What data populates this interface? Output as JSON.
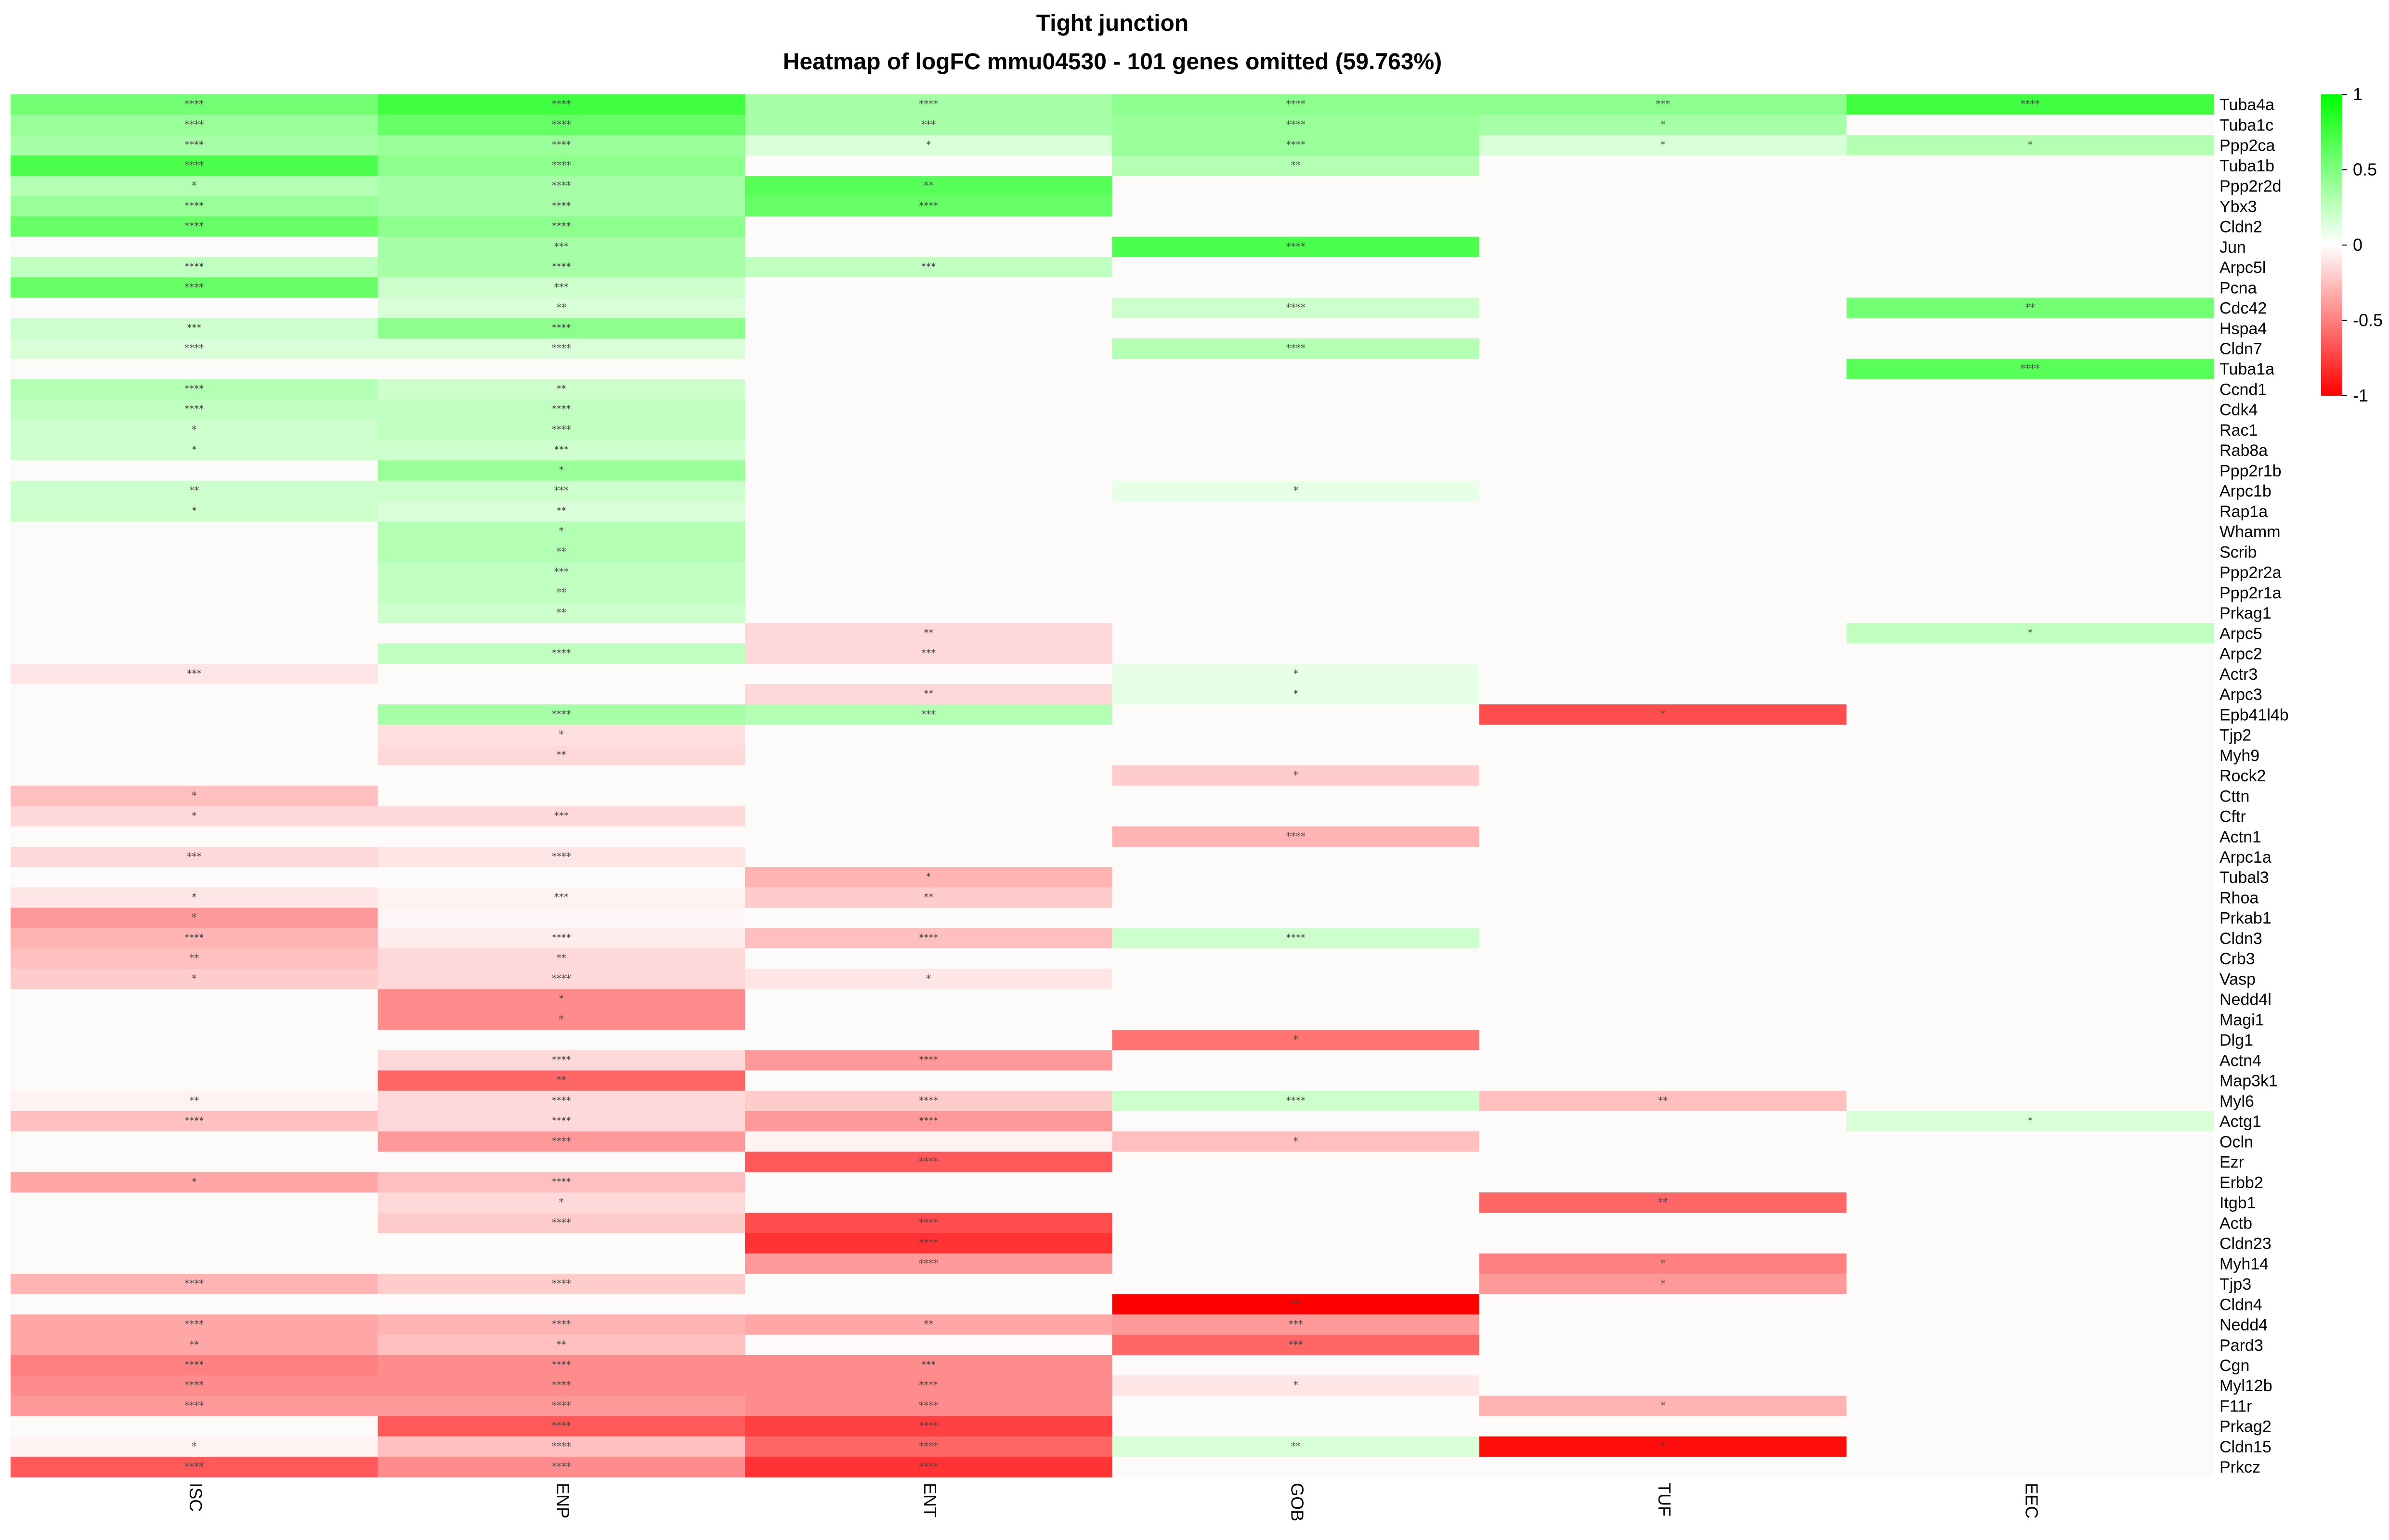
{
  "chart_data": {
    "type": "heatmap",
    "title": "Tight junction",
    "subtitle": "Heatmap of logFC mmu04530 - 101 genes omitted (59.763%)",
    "columns": [
      "ISC",
      "ENP",
      "ENT",
      "GOB",
      "TUF",
      "EEC"
    ],
    "rows": [
      "Tuba4a",
      "Tuba1c",
      "Ppp2ca",
      "Tuba1b",
      "Ppp2r2d",
      "Ybx3",
      "Cldn2",
      "Jun",
      "Arpc5l",
      "Pcna",
      "Cdc42",
      "Hspa4",
      "Cldn7",
      "Tuba1a",
      "Ccnd1",
      "Cdk4",
      "Rac1",
      "Rab8a",
      "Ppp2r1b",
      "Arpc1b",
      "Rap1a",
      "Whamm",
      "Scrib",
      "Ppp2r2a",
      "Ppp2r1a",
      "Prkag1",
      "Arpc5",
      "Arpc2",
      "Actr3",
      "Arpc3",
      "Epb41l4b",
      "Tjp2",
      "Myh9",
      "Rock2",
      "Cttn",
      "Cftr",
      "Actn1",
      "Arpc1a",
      "Tubal3",
      "Rhoa",
      "Prkab1",
      "Cldn3",
      "Crb3",
      "Vasp",
      "Nedd4l",
      "Magi1",
      "Dlg1",
      "Actn4",
      "Map3k1",
      "Myl6",
      "Actg1",
      "Ocln",
      "Ezr",
      "Erbb2",
      "Itgb1",
      "Actb",
      "Cldn23",
      "Myh14",
      "Tjp3",
      "Cldn4",
      "Nedd4",
      "Pard3",
      "Cgn",
      "Myl12b",
      "F11r",
      "Prkag2",
      "Cldn15",
      "Prkcz"
    ],
    "values": [
      [
        0.55,
        0.75,
        0.35,
        0.45,
        0.45,
        0.75
      ],
      [
        0.4,
        0.6,
        0.35,
        0.4,
        0.35,
        0
      ],
      [
        0.35,
        0.4,
        0.15,
        0.4,
        0.15,
        0.3
      ],
      [
        0.7,
        0.45,
        0,
        0.3,
        0,
        0
      ],
      [
        0.3,
        0.35,
        0.65,
        0,
        0,
        0
      ],
      [
        0.4,
        0.35,
        0.6,
        0,
        0,
        0
      ],
      [
        0.6,
        0.45,
        0,
        0,
        0,
        0
      ],
      [
        0,
        0.35,
        0,
        0.7,
        0,
        0
      ],
      [
        0.25,
        0.35,
        0.25,
        0,
        0,
        0
      ],
      [
        0.6,
        0.2,
        0,
        0,
        0,
        0
      ],
      [
        0,
        0.15,
        0,
        0.2,
        0,
        0.55
      ],
      [
        0.2,
        0.45,
        0,
        0,
        0,
        0
      ],
      [
        0.15,
        0.15,
        0,
        0.3,
        0,
        0
      ],
      [
        0,
        0,
        0,
        0,
        0,
        0.65
      ],
      [
        0.3,
        0.2,
        0,
        0,
        0,
        0
      ],
      [
        0.25,
        0.25,
        0,
        0,
        0,
        0
      ],
      [
        0.2,
        0.25,
        0,
        0,
        0,
        0
      ],
      [
        0.2,
        0.2,
        0,
        0,
        0,
        0
      ],
      [
        0,
        0.4,
        0,
        0,
        0,
        0
      ],
      [
        0.2,
        0.2,
        0,
        0.1,
        0,
        0
      ],
      [
        0.2,
        0.15,
        0,
        0,
        0,
        0
      ],
      [
        0,
        0.3,
        0,
        0,
        0,
        0
      ],
      [
        0,
        0.3,
        0,
        0,
        0,
        0
      ],
      [
        0,
        0.25,
        0,
        0,
        0,
        0
      ],
      [
        0,
        0.25,
        0,
        0,
        0,
        0
      ],
      [
        0,
        0.2,
        0,
        0,
        0,
        0
      ],
      [
        0,
        0,
        -0.15,
        0,
        0,
        0.25
      ],
      [
        0,
        0.25,
        -0.15,
        0,
        0,
        0
      ],
      [
        -0.1,
        0,
        0,
        0.1,
        0,
        0
      ],
      [
        0,
        0,
        -0.15,
        0.1,
        0,
        0
      ],
      [
        0,
        0.35,
        0.3,
        0,
        -0.7,
        0
      ],
      [
        0,
        -0.12,
        0,
        0,
        0,
        0
      ],
      [
        0,
        -0.15,
        0,
        0,
        0,
        0
      ],
      [
        0,
        0,
        0,
        -0.2,
        0,
        0
      ],
      [
        -0.25,
        0,
        0,
        0,
        0,
        0
      ],
      [
        -0.15,
        -0.15,
        0,
        0,
        0,
        0
      ],
      [
        0,
        0,
        0,
        -0.3,
        0,
        0
      ],
      [
        -0.15,
        -0.1,
        0,
        0,
        0,
        0
      ],
      [
        0,
        0,
        -0.3,
        0,
        0,
        0
      ],
      [
        -0.1,
        -0.05,
        -0.2,
        0,
        0,
        0
      ],
      [
        -0.4,
        -0.03,
        0,
        0,
        0,
        0
      ],
      [
        -0.3,
        -0.07,
        -0.25,
        0.2,
        0,
        0
      ],
      [
        -0.25,
        -0.15,
        0,
        0,
        0,
        0
      ],
      [
        -0.2,
        -0.15,
        -0.1,
        0,
        0,
        0
      ],
      [
        0,
        -0.45,
        0,
        0,
        0,
        0
      ],
      [
        0,
        -0.45,
        0,
        0,
        0,
        0
      ],
      [
        0,
        0,
        0,
        -0.55,
        0,
        0
      ],
      [
        0,
        -0.15,
        -0.4,
        0,
        0,
        0
      ],
      [
        0,
        -0.6,
        0,
        0,
        0,
        0
      ],
      [
        -0.05,
        -0.15,
        -0.2,
        0.2,
        -0.25,
        0
      ],
      [
        -0.25,
        -0.15,
        -0.4,
        0,
        0,
        0.15
      ],
      [
        0,
        -0.4,
        -0.05,
        -0.25,
        0,
        0
      ],
      [
        0,
        0,
        -0.65,
        0,
        0,
        0
      ],
      [
        -0.35,
        -0.25,
        0,
        0,
        0,
        0
      ],
      [
        0,
        -0.15,
        0,
        0,
        -0.6,
        0
      ],
      [
        0,
        -0.2,
        -0.7,
        0,
        0,
        0
      ],
      [
        0,
        0,
        -0.8,
        0,
        0,
        0
      ],
      [
        0,
        0,
        -0.4,
        0,
        -0.5,
        0
      ],
      [
        -0.3,
        -0.2,
        0,
        0,
        -0.4,
        0
      ],
      [
        0,
        0,
        0,
        -1.0,
        0,
        0
      ],
      [
        -0.35,
        -0.3,
        -0.35,
        -0.4,
        0,
        0
      ],
      [
        -0.35,
        -0.25,
        0,
        -0.6,
        0,
        0
      ],
      [
        -0.5,
        -0.45,
        -0.45,
        0,
        0,
        0
      ],
      [
        -0.45,
        -0.45,
        -0.45,
        -0.1,
        0,
        0
      ],
      [
        -0.4,
        -0.4,
        -0.45,
        0,
        -0.3,
        0
      ],
      [
        0,
        -0.65,
        -0.75,
        0,
        0,
        0
      ],
      [
        -0.05,
        -0.25,
        -0.6,
        0.15,
        -0.95,
        0
      ],
      [
        -0.65,
        -0.45,
        -0.8,
        0,
        0,
        0
      ]
    ],
    "stars": [
      [
        "****",
        "****",
        "****",
        "****",
        "***",
        "****"
      ],
      [
        "****",
        "****",
        "***",
        "****",
        "*",
        ""
      ],
      [
        "****",
        "****",
        "*",
        "****",
        "*",
        "*"
      ],
      [
        "****",
        "****",
        "",
        "**",
        "",
        ""
      ],
      [
        "*",
        "****",
        "**",
        "",
        "",
        ""
      ],
      [
        "****",
        "****",
        "****",
        "",
        "",
        ""
      ],
      [
        "****",
        "****",
        "",
        "",
        "",
        ""
      ],
      [
        "",
        "***",
        "",
        "****",
        "",
        ""
      ],
      [
        "****",
        "****",
        "***",
        "",
        "",
        ""
      ],
      [
        "****",
        "***",
        "",
        "",
        "",
        ""
      ],
      [
        "",
        "**",
        "",
        "****",
        "",
        "**"
      ],
      [
        "***",
        "****",
        "",
        "",
        "",
        ""
      ],
      [
        "****",
        "****",
        "",
        "****",
        "",
        ""
      ],
      [
        "",
        "",
        "",
        "",
        "",
        "****"
      ],
      [
        "****",
        "**",
        "",
        "",
        "",
        ""
      ],
      [
        "****",
        "****",
        "",
        "",
        "",
        ""
      ],
      [
        "*",
        "****",
        "",
        "",
        "",
        ""
      ],
      [
        "*",
        "***",
        "",
        "",
        "",
        ""
      ],
      [
        "",
        "*",
        "",
        "",
        "",
        ""
      ],
      [
        "**",
        "***",
        "",
        "*",
        "",
        ""
      ],
      [
        "*",
        "**",
        "",
        "",
        "",
        ""
      ],
      [
        "",
        "*",
        "",
        "",
        "",
        ""
      ],
      [
        "",
        "**",
        "",
        "",
        "",
        ""
      ],
      [
        "",
        "***",
        "",
        "",
        "",
        ""
      ],
      [
        "",
        "**",
        "",
        "",
        "",
        ""
      ],
      [
        "",
        "**",
        "",
        "",
        "",
        ""
      ],
      [
        "",
        "",
        "**",
        "",
        "",
        "*"
      ],
      [
        "",
        "****",
        "***",
        "",
        "",
        ""
      ],
      [
        "***",
        "",
        "",
        "*",
        "",
        ""
      ],
      [
        "",
        "",
        "**",
        "*",
        "",
        ""
      ],
      [
        "",
        "****",
        "***",
        "",
        "*",
        ""
      ],
      [
        "",
        "*",
        "",
        "",
        "",
        ""
      ],
      [
        "",
        "**",
        "",
        "",
        "",
        ""
      ],
      [
        "",
        "",
        "",
        "*",
        "",
        ""
      ],
      [
        "*",
        "",
        "",
        "",
        "",
        ""
      ],
      [
        "*",
        "***",
        "",
        "",
        "",
        ""
      ],
      [
        "",
        "",
        "",
        "****",
        "",
        ""
      ],
      [
        "***",
        "****",
        "",
        "",
        "",
        ""
      ],
      [
        "",
        "",
        "*",
        "",
        "",
        ""
      ],
      [
        "*",
        "***",
        "**",
        "",
        "",
        ""
      ],
      [
        "*",
        "",
        "",
        "",
        "",
        ""
      ],
      [
        "****",
        "****",
        "****",
        "****",
        "",
        ""
      ],
      [
        "**",
        "**",
        "",
        "",
        "",
        ""
      ],
      [
        "*",
        "****",
        "*",
        "",
        "",
        ""
      ],
      [
        "",
        "*",
        "",
        "",
        "",
        ""
      ],
      [
        "",
        "*",
        "",
        "",
        "",
        ""
      ],
      [
        "",
        "",
        "",
        "*",
        "",
        ""
      ],
      [
        "",
        "****",
        "****",
        "",
        "",
        ""
      ],
      [
        "",
        "**",
        "",
        "",
        "",
        ""
      ],
      [
        "**",
        "****",
        "****",
        "****",
        "**",
        ""
      ],
      [
        "****",
        "****",
        "****",
        "",
        "",
        "*"
      ],
      [
        "",
        "****",
        "",
        "*",
        "",
        ""
      ],
      [
        "",
        "",
        "****",
        "",
        "",
        ""
      ],
      [
        "*",
        "****",
        "",
        "",
        "",
        ""
      ],
      [
        "",
        "*",
        "",
        "",
        "**",
        ""
      ],
      [
        "",
        "****",
        "****",
        "",
        "",
        ""
      ],
      [
        "",
        "",
        "****",
        "",
        "",
        ""
      ],
      [
        "",
        "",
        "****",
        "",
        "*",
        ""
      ],
      [
        "****",
        "****",
        "",
        "",
        "*",
        ""
      ],
      [
        "",
        "",
        "",
        "**",
        "",
        ""
      ],
      [
        "****",
        "****",
        "**",
        "***",
        "",
        ""
      ],
      [
        "**",
        "**",
        "",
        "***",
        "",
        ""
      ],
      [
        "****",
        "****",
        "***",
        "",
        "",
        ""
      ],
      [
        "****",
        "****",
        "****",
        "*",
        "",
        ""
      ],
      [
        "****",
        "****",
        "****",
        "",
        "*",
        ""
      ],
      [
        "",
        "****",
        "****",
        "",
        "",
        ""
      ],
      [
        "*",
        "****",
        "****",
        "**",
        "*",
        ""
      ],
      [
        "****",
        "****",
        "****",
        "",
        "",
        ""
      ]
    ],
    "color_scale": {
      "low": "#ff0000",
      "mid": "#ffffff",
      "high": "#00ff00",
      "zero_fill": "#fdfbfa",
      "range": [
        -1,
        1
      ]
    },
    "legend": {
      "position": "right",
      "tick_labels": [
        "1",
        "0.5",
        "0",
        "-0.5",
        "-1"
      ],
      "tick_values": [
        1,
        0.5,
        0,
        -0.5,
        -1
      ]
    },
    "xlabel": "",
    "ylabel": ""
  }
}
